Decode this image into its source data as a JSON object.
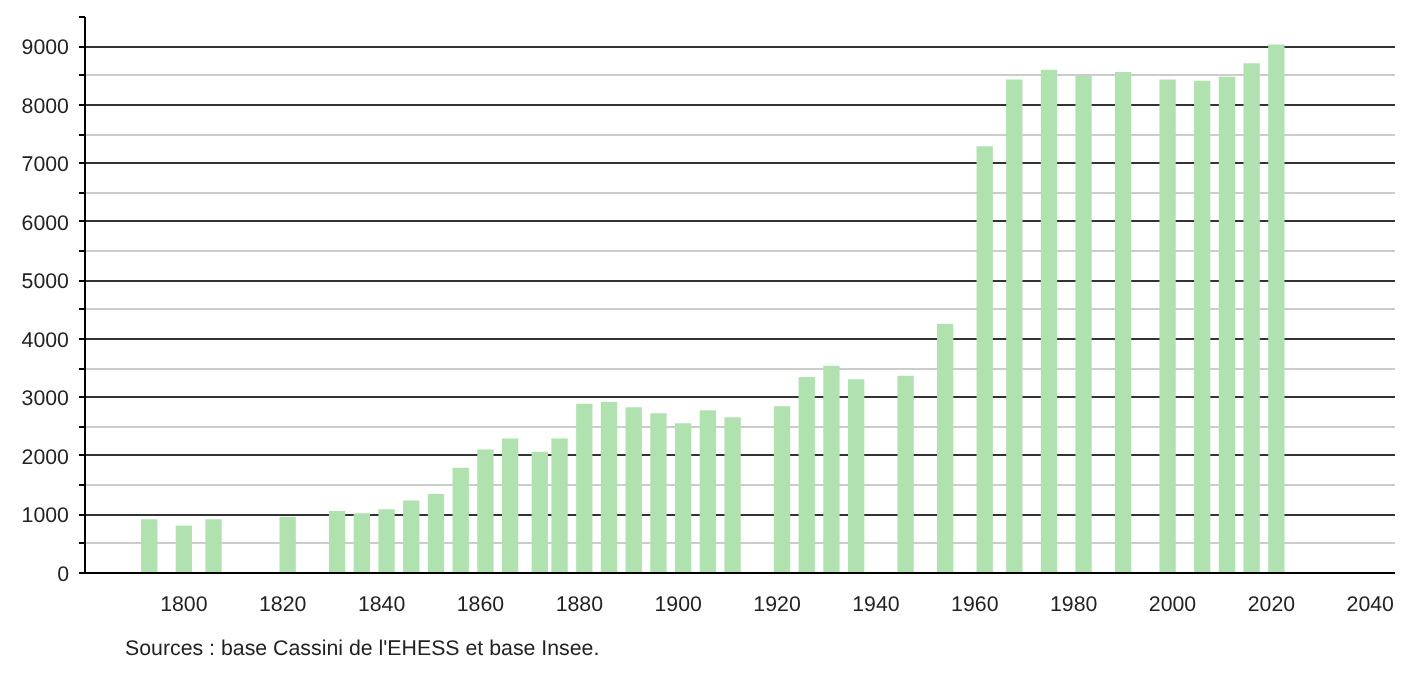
{
  "chart_data": {
    "type": "bar",
    "x": [
      1793,
      1800,
      1806,
      1821,
      1831,
      1836,
      1841,
      1846,
      1851,
      1856,
      1861,
      1866,
      1872,
      1876,
      1881,
      1886,
      1891,
      1896,
      1901,
      1906,
      1911,
      1921,
      1926,
      1931,
      1936,
      1946,
      1954,
      1962,
      1968,
      1975,
      1982,
      1990,
      1999,
      2006,
      2011,
      2016,
      2021
    ],
    "values": [
      920,
      810,
      920,
      960,
      1060,
      1020,
      1090,
      1240,
      1350,
      1800,
      2110,
      2300,
      2070,
      2300,
      2890,
      2920,
      2830,
      2730,
      2560,
      2780,
      2660,
      2850,
      3350,
      3540,
      3310,
      3370,
      4260,
      7290,
      8430,
      8600,
      8490,
      8560,
      8430,
      8410,
      8480,
      8710,
      9030
    ],
    "color": "#b0e2b0",
    "xlim": [
      1780,
      2045
    ],
    "xticks": [
      1800,
      1820,
      1840,
      1860,
      1880,
      1900,
      1920,
      1940,
      1960,
      1980,
      2000,
      2020,
      2040
    ],
    "ylim": [
      0,
      9500
    ],
    "yticks": [
      0,
      {
        "value": 500,
        "label": null
      },
      1000,
      {
        "value": 1500,
        "label": null
      },
      2000,
      {
        "value": 2500,
        "label": null
      },
      3000,
      {
        "value": 3500,
        "label": null
      },
      4000,
      {
        "value": 4500,
        "label": null
      },
      5000,
      {
        "value": 5500,
        "label": null
      },
      6000,
      {
        "value": 6500,
        "label": null
      },
      7000,
      {
        "value": 7500,
        "label": null
      },
      8000,
      {
        "value": 8500,
        "label": null
      },
      9000,
      {
        "value": 9500,
        "label": null
      }
    ],
    "grid": "y",
    "annotations": [
      "Sources : base Cassini de l'EHESS et base Insee."
    ]
  }
}
